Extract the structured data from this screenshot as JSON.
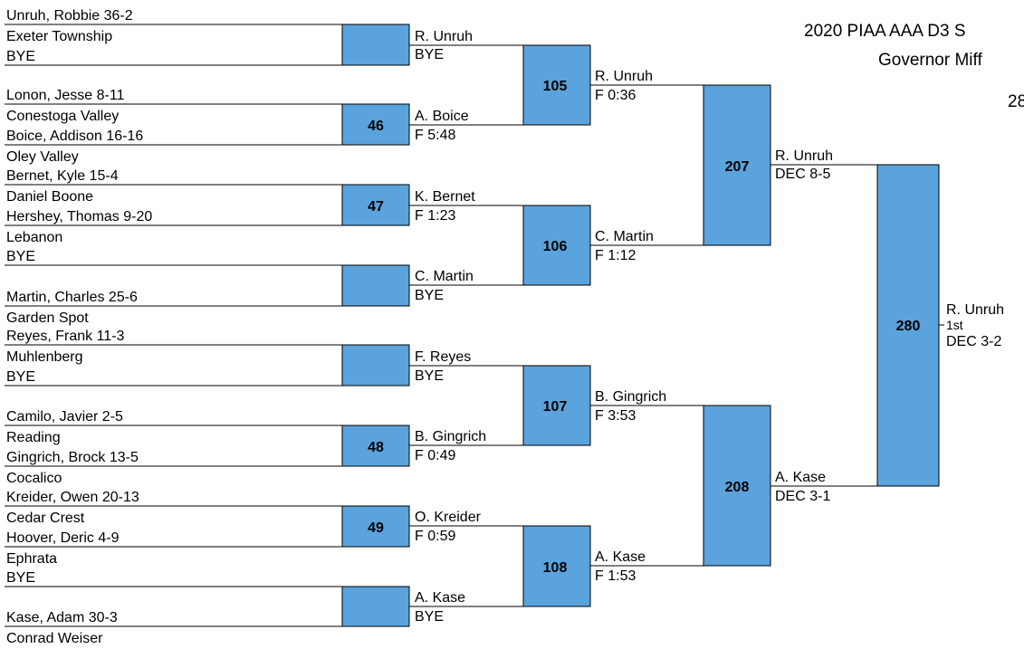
{
  "header": {
    "title": "2020 PIAA AAA D3 S",
    "subtitle": "Governor Miff",
    "weight": "28"
  },
  "entries": [
    {
      "line1": "Unruh, Robbie   36-2",
      "line2": "Exeter Township"
    },
    {
      "line1": "BYE",
      "line2": ""
    },
    {
      "line1": "Lonon, Jesse   8-11",
      "line2": "Conestoga Valley"
    },
    {
      "line1": "Boice, Addison   16-16",
      "line2": "Oley Valley"
    },
    {
      "line1": "Bernet, Kyle   15-4",
      "line2": "Daniel Boone"
    },
    {
      "line1": "Hershey, Thomas   9-20",
      "line2": "Lebanon"
    },
    {
      "line1": "BYE",
      "line2": ""
    },
    {
      "line1": "Martin, Charles   25-6",
      "line2": "Garden Spot"
    },
    {
      "line1": "Reyes, Frank   11-3",
      "line2": "Muhlenberg"
    },
    {
      "line1": "BYE",
      "line2": ""
    },
    {
      "line1": "Camilo, Javier   2-5",
      "line2": "Reading"
    },
    {
      "line1": "Gingrich, Brock   13-5",
      "line2": "Cocalico"
    },
    {
      "line1": "Kreider, Owen   20-13",
      "line2": "Cedar Crest"
    },
    {
      "line1": "Hoover, Deric   4-9",
      "line2": "Ephrata"
    },
    {
      "line1": "BYE",
      "line2": ""
    },
    {
      "line1": "Kase, Adam   30-3",
      "line2": "Conrad Weiser"
    }
  ],
  "round1": [
    {
      "bout": "",
      "winner": "R. Unruh",
      "result": "BYE"
    },
    {
      "bout": "46",
      "winner": "A. Boice",
      "result": "F 5:48"
    },
    {
      "bout": "47",
      "winner": "K. Bernet",
      "result": "F 1:23"
    },
    {
      "bout": "",
      "winner": "C. Martin",
      "result": "BYE"
    },
    {
      "bout": "",
      "winner": "F. Reyes",
      "result": "BYE"
    },
    {
      "bout": "48",
      "winner": "B. Gingrich",
      "result": "F 0:49"
    },
    {
      "bout": "49",
      "winner": "O. Kreider",
      "result": "F 0:59"
    },
    {
      "bout": "",
      "winner": "A. Kase",
      "result": "BYE"
    }
  ],
  "round2": [
    {
      "bout": "105",
      "winner": "R. Unruh",
      "result": "F 0:36"
    },
    {
      "bout": "106",
      "winner": "C. Martin",
      "result": "F 1:12"
    },
    {
      "bout": "107",
      "winner": "B. Gingrich",
      "result": "F 3:53"
    },
    {
      "bout": "108",
      "winner": "A. Kase",
      "result": "F 1:53"
    }
  ],
  "round3": [
    {
      "bout": "207",
      "winner": "R. Unruh",
      "result": "DEC 8-5"
    },
    {
      "bout": "208",
      "winner": "A. Kase",
      "result": "DEC 3-1"
    }
  ],
  "final": {
    "bout": "280",
    "winner": "R. Unruh",
    "place": "1st",
    "result": "DEC 3-2"
  },
  "colors": {
    "box_fill": "#5ba3dc",
    "line": "#000000"
  }
}
